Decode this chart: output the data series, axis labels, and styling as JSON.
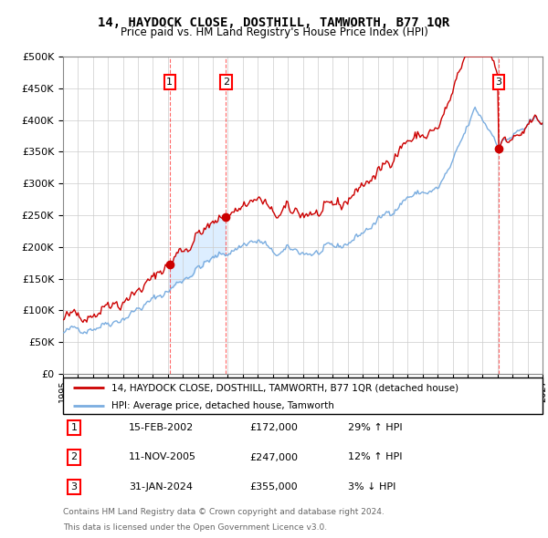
{
  "title": "14, HAYDOCK CLOSE, DOSTHILL, TAMWORTH, B77 1QR",
  "subtitle": "Price paid vs. HM Land Registry's House Price Index (HPI)",
  "legend_line1": "14, HAYDOCK CLOSE, DOSTHILL, TAMWORTH, B77 1QR (detached house)",
  "legend_line2": "HPI: Average price, detached house, Tamworth",
  "footnote1": "Contains HM Land Registry data © Crown copyright and database right 2024.",
  "footnote2": "This data is licensed under the Open Government Licence v3.0.",
  "transactions": [
    {
      "label": "1",
      "date": "15-FEB-2002",
      "price": "£172,000",
      "hpi": "29% ↑ HPI",
      "year": 2002.12
    },
    {
      "label": "2",
      "date": "11-NOV-2005",
      "price": "£247,000",
      "hpi": "12% ↑ HPI",
      "year": 2005.87
    },
    {
      "label": "3",
      "date": "31-JAN-2024",
      "price": "£355,000",
      "hpi": "3% ↓ HPI",
      "year": 2024.08
    }
  ],
  "price_color": "#cc0000",
  "hpi_color": "#7aade0",
  "shade_color": "#ddeeff",
  "ylim": [
    0,
    500000
  ],
  "yticks": [
    0,
    50000,
    100000,
    150000,
    200000,
    250000,
    300000,
    350000,
    400000,
    450000,
    500000
  ],
  "xlim_start": 1995,
  "xlim_end": 2027
}
